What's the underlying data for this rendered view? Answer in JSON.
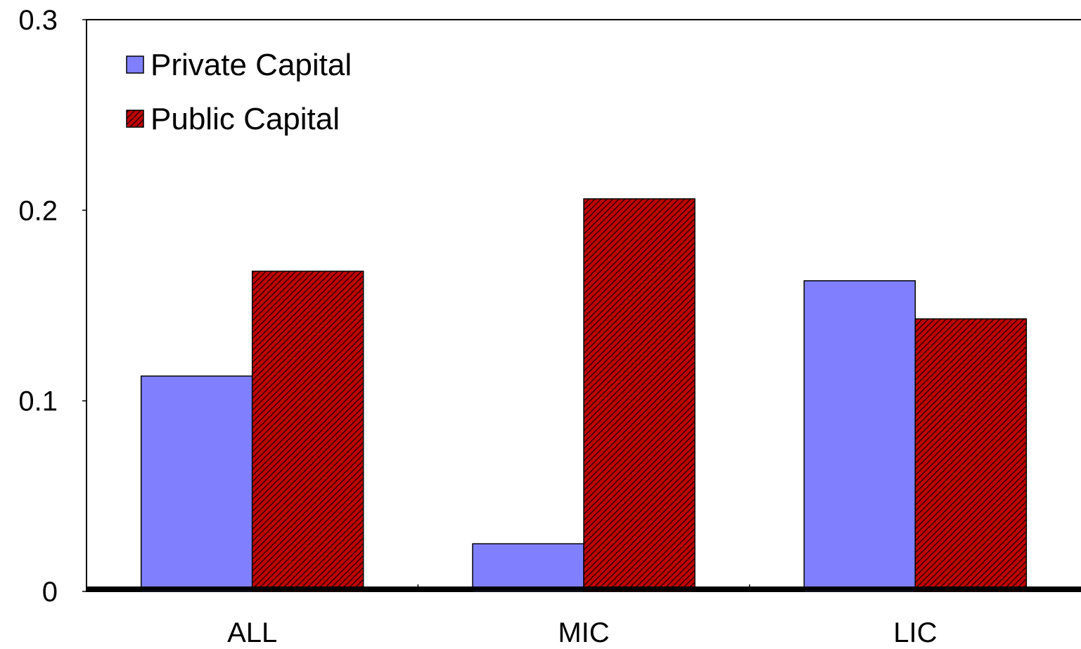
{
  "chart_data": {
    "type": "bar",
    "title": "",
    "xlabel": "",
    "ylabel": "",
    "categories": [
      "ALL",
      "MIC",
      "LIC"
    ],
    "series": [
      {
        "name": "Private Capital",
        "values": [
          0.113,
          0.025,
          0.163
        ],
        "color": "#8080ff",
        "pattern": "solid"
      },
      {
        "name": "Public Capital",
        "values": [
          0.168,
          0.206,
          0.143
        ],
        "color": "#c00000",
        "pattern": "diagonal-hatch"
      }
    ],
    "ylim": [
      0,
      0.3
    ],
    "yticks": [
      0,
      0.1,
      0.2,
      0.3
    ],
    "ytick_labels": [
      "0",
      "0.1",
      "0.2",
      "0.3"
    ],
    "grid": false,
    "legend_position": "top-left"
  }
}
